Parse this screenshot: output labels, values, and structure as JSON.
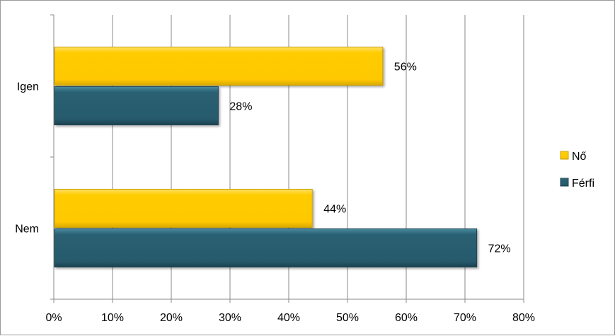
{
  "chart_data": {
    "type": "bar",
    "orientation": "horizontal",
    "categories": [
      "Igen",
      "Nem"
    ],
    "series": [
      {
        "name": "Nő",
        "values": [
          56,
          44
        ],
        "color": "#ffcc00"
      },
      {
        "name": "Férfi",
        "values": [
          28,
          72
        ],
        "color": "#2a6073"
      }
    ],
    "value_labels": {
      "Nő": [
        "56%",
        "44%"
      ],
      "Férfi": [
        "28%",
        "72%"
      ]
    },
    "xlim": [
      0,
      80
    ],
    "x_ticks": [
      "0%",
      "10%",
      "20%",
      "30%",
      "40%",
      "50%",
      "60%",
      "70%",
      "80%"
    ],
    "grid": "vertical",
    "legend": "right",
    "title": "",
    "xlabel": "",
    "ylabel": ""
  }
}
